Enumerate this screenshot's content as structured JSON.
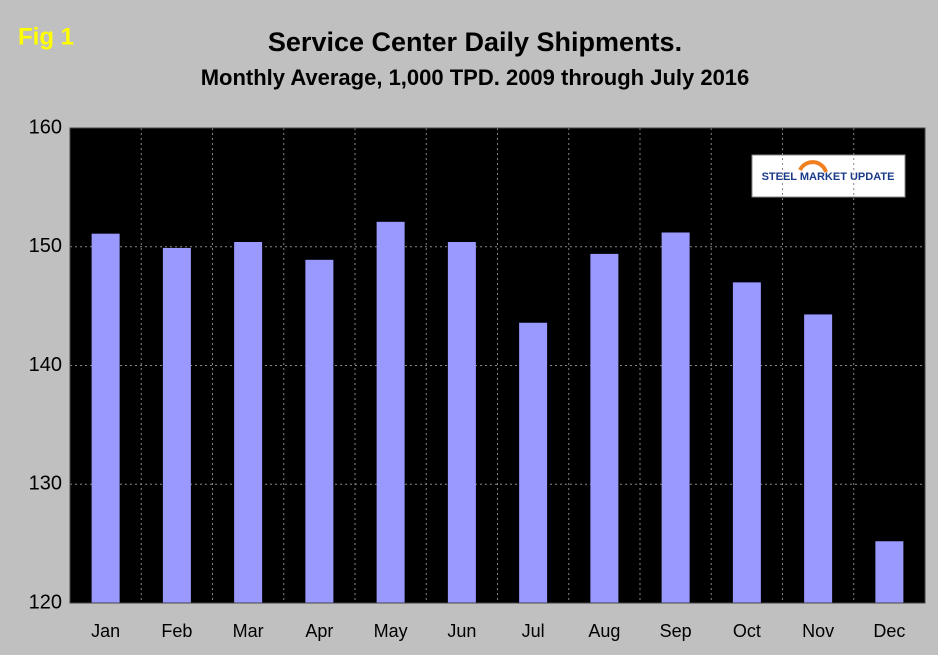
{
  "chart_data": {
    "type": "bar",
    "figure_label": "Fig 1",
    "title": "Service Center Daily Shipments.",
    "subtitle": "Monthly Average, 1,000 TPD.  2009 through July 2016",
    "logo": "STEEL MARKET UPDATE",
    "categories": [
      "Jan",
      "Feb",
      "Mar",
      "Apr",
      "May",
      "Jun",
      "Jul",
      "Aug",
      "Sep",
      "Oct",
      "Nov",
      "Dec"
    ],
    "values": [
      151.1,
      149.9,
      150.4,
      148.9,
      152.1,
      150.4,
      143.6,
      149.4,
      151.2,
      147.0,
      144.3,
      125.2
    ],
    "color": "#9999ff",
    "ylim": [
      120,
      160
    ],
    "yticks": [
      120,
      130,
      140,
      150,
      160
    ],
    "grid": true
  }
}
